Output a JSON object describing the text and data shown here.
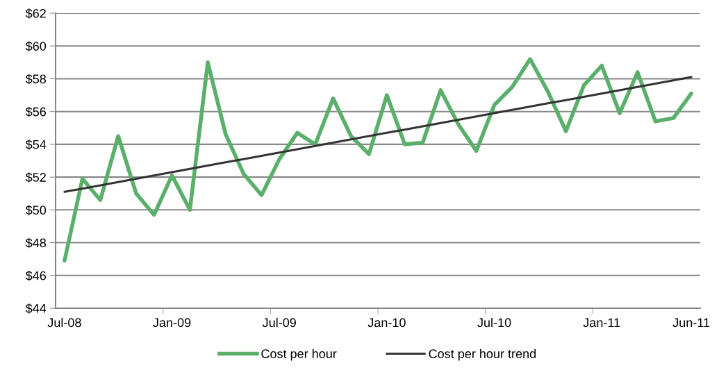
{
  "chart_data": {
    "type": "line",
    "categories": [
      "Jul-08",
      null,
      null,
      null,
      null,
      null,
      "Jan-09",
      null,
      null,
      null,
      null,
      null,
      "Jul-09",
      null,
      null,
      null,
      null,
      null,
      "Jan-10",
      null,
      null,
      null,
      null,
      null,
      "Jul-10",
      null,
      null,
      null,
      null,
      null,
      "Jan-11",
      null,
      null,
      null,
      null,
      "Jun-11"
    ],
    "series": [
      {
        "name": "Cost per hour",
        "color": "#5aaf6a",
        "values": [
          46.9,
          51.9,
          50.6,
          54.5,
          51.0,
          49.7,
          52.1,
          50.0,
          59.0,
          54.6,
          52.2,
          50.9,
          53.1,
          54.7,
          54.0,
          56.8,
          54.5,
          53.4,
          57.0,
          54.0,
          54.1,
          57.3,
          55.2,
          53.6,
          56.4,
          57.5,
          59.2,
          57.2,
          54.8,
          57.6,
          58.8,
          55.9,
          58.4,
          55.4,
          55.6,
          57.1
        ]
      },
      {
        "name": "Cost per hour trend",
        "color": "#333333",
        "values": [
          51.1,
          51.3,
          51.5,
          51.7,
          51.9,
          52.1,
          52.3,
          52.5,
          52.7,
          52.9,
          53.1,
          53.3,
          53.5,
          53.7,
          53.9,
          54.1,
          54.3,
          54.5,
          54.7,
          54.9,
          55.1,
          55.3,
          55.5,
          55.7,
          55.9,
          56.1,
          56.3,
          56.5,
          56.7,
          56.9,
          57.1,
          57.3,
          57.5,
          57.7,
          57.9,
          58.1
        ]
      }
    ],
    "ylim": [
      44,
      62
    ],
    "yticks": [
      {
        "value": 44,
        "label": "$44"
      },
      {
        "value": 46,
        "label": "$46"
      },
      {
        "value": 48,
        "label": "$48"
      },
      {
        "value": 50,
        "label": "$50"
      },
      {
        "value": 52,
        "label": "$52"
      },
      {
        "value": 54,
        "label": "$54"
      },
      {
        "value": 56,
        "label": "$56"
      },
      {
        "value": 58,
        "label": "$58"
      },
      {
        "value": 60,
        "label": "$60"
      },
      {
        "value": 62,
        "label": "$62"
      }
    ],
    "grid": "y",
    "legend": "bottom",
    "marker": "none",
    "line_style": "solid"
  }
}
